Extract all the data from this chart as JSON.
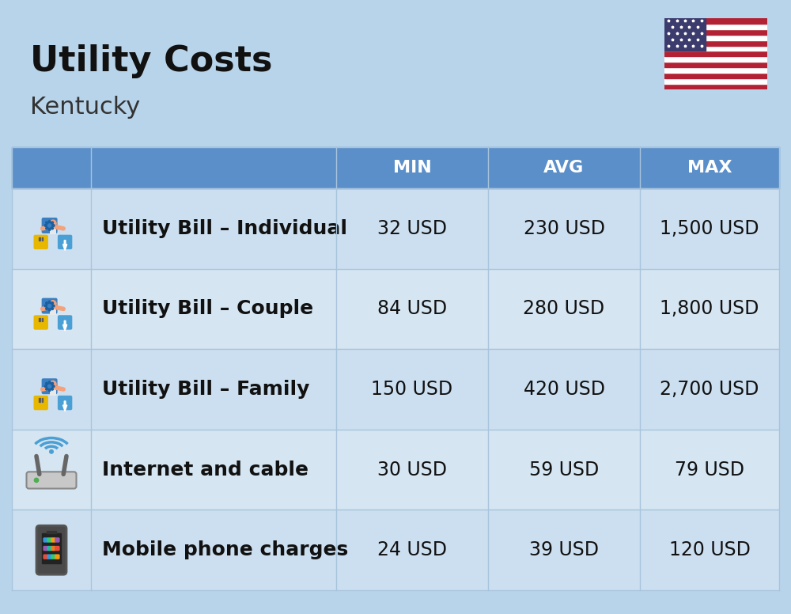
{
  "title": "Utility Costs",
  "subtitle": "Kentucky",
  "background_color": "#b8d4ea",
  "header_color": "#5b8fc9",
  "header_text_color": "#ffffff",
  "row_color_light": "#ccdff0",
  "row_color_mid": "#d5e5f2",
  "border_color": "#a8c4dc",
  "header_labels": [
    "MIN",
    "AVG",
    "MAX"
  ],
  "rows": [
    {
      "label": "Utility Bill – Individual",
      "min": "32 USD",
      "avg": "230 USD",
      "max": "1,500 USD",
      "icon": "utility"
    },
    {
      "label": "Utility Bill – Couple",
      "min": "84 USD",
      "avg": "280 USD",
      "max": "1,800 USD",
      "icon": "utility"
    },
    {
      "label": "Utility Bill – Family",
      "min": "150 USD",
      "avg": "420 USD",
      "max": "2,700 USD",
      "icon": "utility"
    },
    {
      "label": "Internet and cable",
      "min": "30 USD",
      "avg": "59 USD",
      "max": "79 USD",
      "icon": "internet"
    },
    {
      "label": "Mobile phone charges",
      "min": "24 USD",
      "avg": "39 USD",
      "max": "120 USD",
      "icon": "phone"
    }
  ],
  "title_fontsize": 32,
  "subtitle_fontsize": 22,
  "header_fontsize": 16,
  "cell_fontsize": 17,
  "label_fontsize": 18
}
